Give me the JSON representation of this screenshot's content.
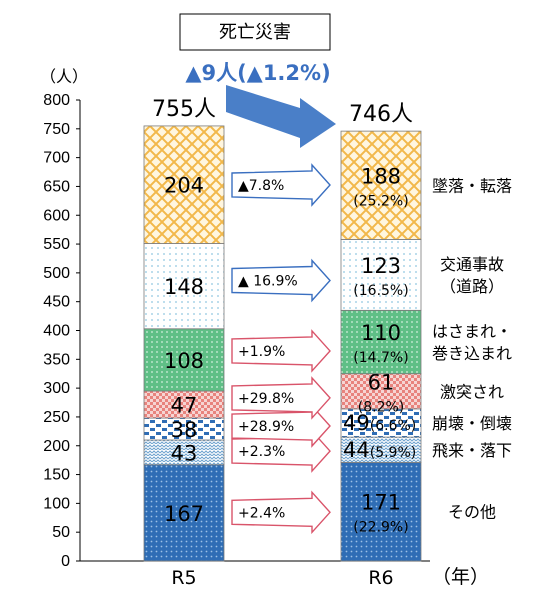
{
  "chart_data": {
    "type": "bar",
    "stacked": true,
    "title": "死亡災害",
    "y_unit": "（人）",
    "x_unit": "（年）",
    "ylim": [
      0,
      800
    ],
    "ytick_step": 50,
    "categories": [
      "R5",
      "R6"
    ],
    "series": [
      {
        "name": "その他",
        "values": [
          167,
          171
        ],
        "share_R6": "(22.9%)",
        "change": "+2.4%",
        "color": "#2f6db5",
        "pattern": "dots-dense"
      },
      {
        "name": "飛来・落下",
        "values": [
          43,
          44
        ],
        "share_R6": "(5.9%)",
        "change": "+2.3%",
        "color": "#7fb0d8",
        "pattern": "waves"
      },
      {
        "name": "崩壊・倒壊",
        "values": [
          38,
          49
        ],
        "share_R6": "(6.6%)",
        "change": "+28.9%",
        "color": "#2f6db5",
        "pattern": "stripes-blue"
      },
      {
        "name": "激突され",
        "values": [
          47,
          61
        ],
        "share_R6": "(8.2%)",
        "change": "+29.8%",
        "color": "#e8837d",
        "pattern": "checks"
      },
      {
        "name": "はさまれ・巻き込まれ",
        "values": [
          108,
          110
        ],
        "share_R6": "(14.7%)",
        "change": "+1.9%",
        "color": "#5fbf86",
        "pattern": "dots-green"
      },
      {
        "name": "交通事故（道路）",
        "values": [
          148,
          123
        ],
        "share_R6": "(16.5%)",
        "change": "▲ 16.9%",
        "color": "#8fc6e0",
        "pattern": "dots-sparse"
      },
      {
        "name": "墜落・転落",
        "values": [
          204,
          188
        ],
        "share_R6": "(25.2%)",
        "change": "▲7.8%",
        "color": "#f2b84a",
        "pattern": "lattice"
      }
    ],
    "totals": {
      "R5": "755人",
      "R6": "746人"
    },
    "total_change": "▲9人(▲1.2%)",
    "grid": false,
    "legend": "right, labels beside R6 bar"
  }
}
